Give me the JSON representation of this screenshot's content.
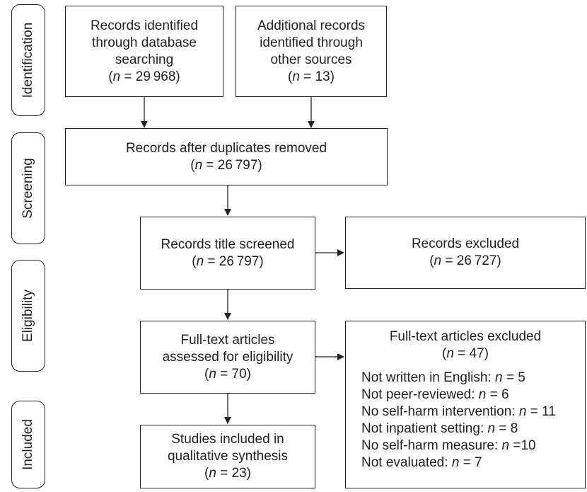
{
  "phases": {
    "identification": "Identification",
    "screening": "Screening",
    "eligibility": "Eligibility",
    "included": "Included"
  },
  "boxes": {
    "database": {
      "lines": [
        "Records identified",
        "through database",
        "searching"
      ],
      "n_pre": "(",
      "n_var": "n",
      "n_post": " = 29 968)"
    },
    "other_sources": {
      "lines": [
        "Additional records",
        "identified through",
        "other sources"
      ],
      "n_pre": "(",
      "n_var": "n",
      "n_post": " = 13)"
    },
    "duplicates_removed": {
      "lines": [
        "Records after duplicates removed"
      ],
      "n_pre": "(",
      "n_var": "n",
      "n_post": " = 26 797)"
    },
    "title_screened": {
      "lines": [
        "Records title screened"
      ],
      "n_pre": "(",
      "n_var": "n",
      "n_post": " = 26 797)"
    },
    "records_excluded": {
      "lines": [
        "Records excluded"
      ],
      "n_pre": "(",
      "n_var": "n",
      "n_post": " = 26 727)"
    },
    "fulltext_assessed": {
      "lines": [
        "Full-text articles",
        "assessed for eligibility"
      ],
      "n_pre": "(",
      "n_var": "n",
      "n_post": " = 70)"
    },
    "included_studies": {
      "lines": [
        "Studies included in",
        "qualitative synthesis"
      ],
      "n_pre": "(",
      "n_var": "n",
      "n_post": " = 23)"
    }
  },
  "fulltext_excluded": {
    "title": "Full-text articles excluded",
    "n_pre": "(",
    "n_var": "n",
    "n_post": " = 47)",
    "reasons": [
      {
        "label": "Not written in English: ",
        "var": "n",
        "post": " = 5"
      },
      {
        "label": "Not peer-reviewed: ",
        "var": "n",
        "post": " = 6"
      },
      {
        "label": "No self-harm intervention: ",
        "var": "n",
        "post": " = 11"
      },
      {
        "label": "Not inpatient setting: ",
        "var": "n",
        "post": " = 8"
      },
      {
        "label": "No self-harm measure: ",
        "var": "n",
        "post": " =10"
      },
      {
        "label": "Not evaluated: ",
        "var": "n",
        "post": " = 7"
      }
    ]
  }
}
